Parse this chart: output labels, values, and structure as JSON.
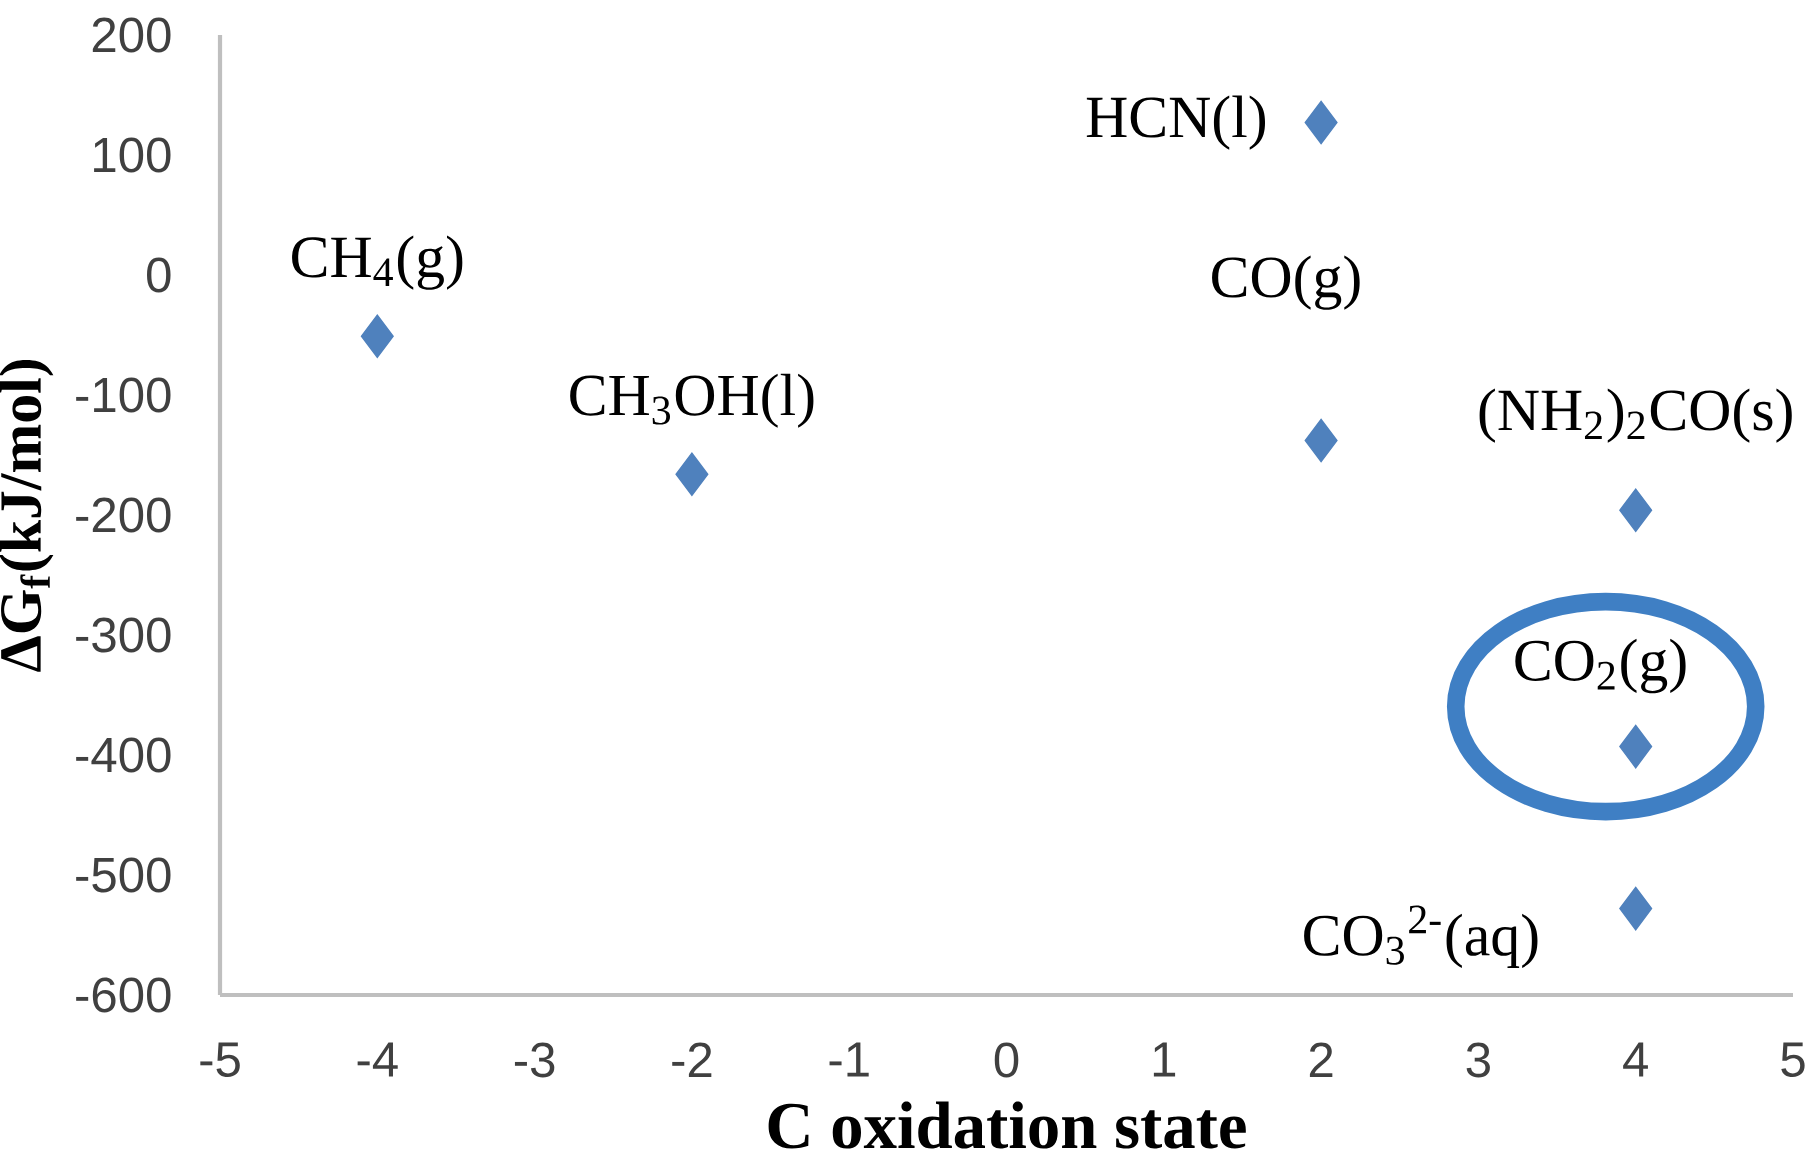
{
  "chart_data": {
    "type": "scatter",
    "xlabel": "C oxidation state",
    "ylabel": "ΔG$_{f}$(kJ/mol)",
    "x": [
      -4,
      -2,
      2,
      2,
      4,
      4,
      4
    ],
    "series": [
      {
        "color": "#4f81bd",
        "values": [
          -51,
          -166,
          127,
          -138,
          -196,
          -393,
          -528
        ]
      }
    ],
    "marker": "diamond",
    "grid": false,
    "xlim": [
      -5,
      5
    ],
    "xticks": [
      -5,
      -4,
      -3,
      -2,
      -1,
      0,
      1,
      2,
      3,
      4,
      5
    ],
    "ylim": [
      -600,
      200
    ],
    "yticks": [
      -600,
      -500,
      -400,
      -300,
      -200,
      -100,
      0,
      100,
      200
    ],
    "annotations": [
      {
        "text": "CH$_{4}$(g)",
        "x": -4,
        "y": -51
      },
      {
        "text": "CH$_{3}$OH(l)",
        "x": -2,
        "y": -166
      },
      {
        "text": "HCN(l)",
        "x": 2,
        "y": 127
      },
      {
        "text": "CO(g)",
        "x": 2,
        "y": -138
      },
      {
        "text": "(NH$_{2}$)$_{2}$CO(s)",
        "x": 4,
        "y": -196
      },
      {
        "text": "CO$_{2}$(g)",
        "x": 4,
        "y": -393
      },
      {
        "text": "CO$_{3}$$^{2-}$(aq)",
        "x": 4,
        "y": -528
      }
    ]
  }
}
